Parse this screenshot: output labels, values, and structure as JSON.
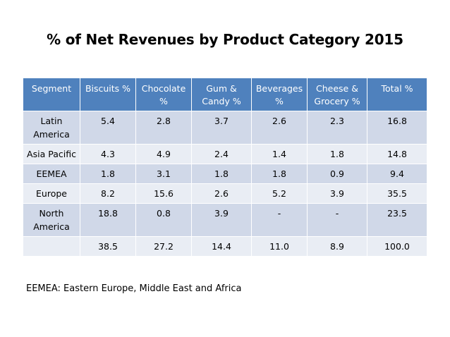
{
  "title": "% of Net Revenues by Product Category 2015",
  "table": {
    "headers": [
      "Segment",
      "Biscuits %",
      "Chocolate %",
      "Gum & Candy %",
      "Beverages %",
      "Cheese & Grocery %",
      "Total %"
    ],
    "rows": [
      [
        "Latin America",
        "5.4",
        "2.8",
        "3.7",
        "2.6",
        "2.3",
        "16.8"
      ],
      [
        "Asia Pacific",
        "4.3",
        "4.9",
        "2.4",
        "1.4",
        "1.8",
        "14.8"
      ],
      [
        "EEMEA",
        "1.8",
        "3.1",
        "1.8",
        "1.8",
        "0.9",
        "9.4"
      ],
      [
        "Europe",
        "8.2",
        "15.6",
        "2.6",
        "5.2",
        "3.9",
        "35.5"
      ],
      [
        "North America",
        "18.8",
        "0.8",
        "3.9",
        "-",
        "-",
        "23.5"
      ],
      [
        "",
        "38.5",
        "27.2",
        "14.4",
        "11.0",
        "8.9",
        "100.0"
      ]
    ]
  },
  "footnote": "EEMEA: Eastern Europe, Middle East and Africa",
  "colors": {
    "header_bg": "#4f81bd",
    "row_odd_bg": "#d0d8e8",
    "row_even_bg": "#e9edf4"
  }
}
